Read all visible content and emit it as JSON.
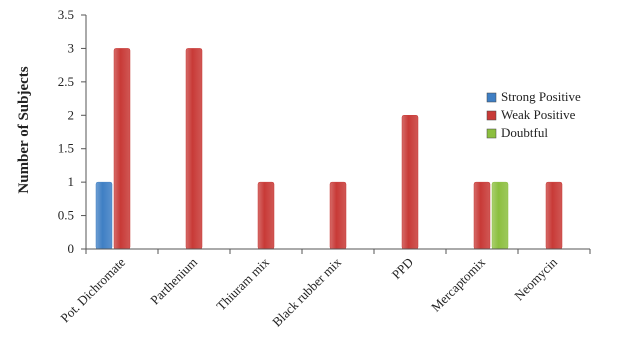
{
  "chart_data": {
    "type": "bar",
    "title": "",
    "xlabel": "",
    "ylabel": "Number of Subjects",
    "ylim": [
      0,
      3.5
    ],
    "yticks": [
      "0",
      "0.5",
      "1",
      "1.5",
      "2",
      "2.5",
      "3",
      "3.5"
    ],
    "grid": false,
    "legend_position": "right",
    "categories": [
      "Pot. Dichromate",
      "Parthenium",
      "Thiuram mix",
      "Black rubber mix",
      "PPD",
      "Mercaptomix",
      "Neomycin"
    ],
    "series": [
      {
        "name": "Strong Positive",
        "color": "#3f7fc4",
        "values": [
          1,
          0,
          0,
          0,
          0,
          0,
          0
        ]
      },
      {
        "name": "Weak Positive",
        "color": "#c83a37",
        "values": [
          3,
          3,
          1,
          1,
          2,
          1,
          1
        ]
      },
      {
        "name": "Doubtful",
        "color": "#8cbf3f",
        "values": [
          0,
          0,
          0,
          0,
          0,
          1,
          0
        ]
      }
    ]
  }
}
